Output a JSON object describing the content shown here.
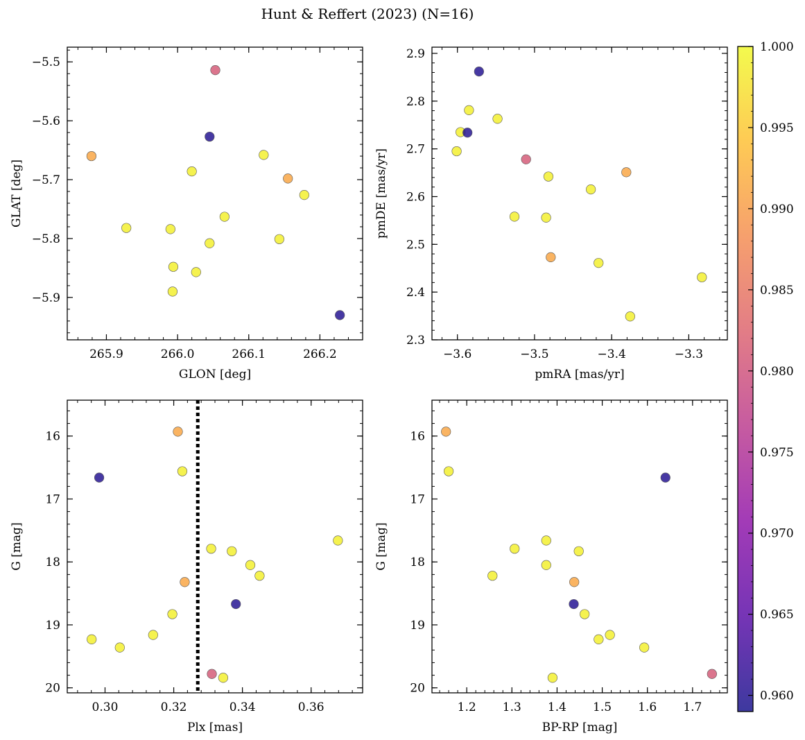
{
  "figure_title": "Hunt & Reffert (2023) (N=16)",
  "colorbar": {
    "min": 0.959,
    "max": 1.0,
    "ticks": [
      0.96,
      0.965,
      0.97,
      0.975,
      0.98,
      0.985,
      0.99,
      0.995,
      1.0
    ],
    "tick_labels": [
      "0.960",
      "0.965",
      "0.970",
      "0.975",
      "0.980",
      "0.985",
      "0.990",
      "0.995",
      "1.000"
    ],
    "colormap": [
      "#0d0887",
      "#5302a3",
      "#8b0aa5",
      "#b83289",
      "#db5c68",
      "#f48849",
      "#febd2a",
      "#f0f921"
    ]
  },
  "chart_data": [
    {
      "type": "scatter",
      "id": "glon-glat",
      "xlabel": "GLON [deg]",
      "ylabel": "GLAT [deg]",
      "xlim": [
        265.845,
        266.26
      ],
      "ylim": [
        -5.972,
        -5.475
      ],
      "y_inverted": false,
      "xticks": [
        265.9,
        266.0,
        266.1,
        266.2
      ],
      "xtick_labels": [
        "265.9",
        "266.0",
        "266.1",
        "266.2"
      ],
      "yticks": [
        -5.5,
        -5.6,
        -5.7,
        -5.8,
        -5.9
      ],
      "ytick_labels": [
        "−5.5",
        "−5.6",
        "−5.7",
        "−5.8",
        "−5.9"
      ],
      "points": [
        {
          "x": 266.053,
          "y": -5.514,
          "c": 0.981
        },
        {
          "x": 266.045,
          "y": -5.627,
          "c": 0.96
        },
        {
          "x": 265.879,
          "y": -5.66,
          "c": 0.991
        },
        {
          "x": 266.121,
          "y": -5.658,
          "c": 0.999
        },
        {
          "x": 266.02,
          "y": -5.686,
          "c": 0.999
        },
        {
          "x": 266.155,
          "y": -5.698,
          "c": 0.991
        },
        {
          "x": 266.178,
          "y": -5.726,
          "c": 0.999
        },
        {
          "x": 266.066,
          "y": -5.763,
          "c": 0.999
        },
        {
          "x": 265.928,
          "y": -5.782,
          "c": 0.999
        },
        {
          "x": 265.99,
          "y": -5.784,
          "c": 0.999
        },
        {
          "x": 266.143,
          "y": -5.801,
          "c": 0.999
        },
        {
          "x": 266.045,
          "y": -5.808,
          "c": 0.999
        },
        {
          "x": 265.994,
          "y": -5.848,
          "c": 0.999
        },
        {
          "x": 266.026,
          "y": -5.857,
          "c": 0.999
        },
        {
          "x": 265.993,
          "y": -5.89,
          "c": 0.999
        },
        {
          "x": 266.228,
          "y": -5.93,
          "c": 0.96
        }
      ]
    },
    {
      "type": "scatter",
      "id": "pmra-pmde",
      "xlabel": "pmRA [mas/yr]",
      "ylabel": "pmDE [mas/yr]",
      "xlim": [
        -3.633,
        -3.25
      ],
      "ylim": [
        2.3,
        2.913
      ],
      "y_inverted": false,
      "xticks": [
        -3.6,
        -3.5,
        -3.4,
        -3.3
      ],
      "xtick_labels": [
        "−3.6",
        "−3.5",
        "−3.4",
        "−3.3"
      ],
      "yticks": [
        2.3,
        2.4,
        2.5,
        2.6,
        2.7,
        2.8,
        2.9
      ],
      "ytick_labels": [
        "2.3",
        "2.4",
        "2.5",
        "2.6",
        "2.7",
        "2.8",
        "2.9"
      ],
      "points": [
        {
          "x": -3.572,
          "y": 2.862,
          "c": 0.96
        },
        {
          "x": -3.585,
          "y": 2.781,
          "c": 0.999
        },
        {
          "x": -3.548,
          "y": 2.763,
          "c": 0.999
        },
        {
          "x": -3.596,
          "y": 2.735,
          "c": 0.999
        },
        {
          "x": -3.587,
          "y": 2.734,
          "c": 0.96
        },
        {
          "x": -3.601,
          "y": 2.695,
          "c": 0.999
        },
        {
          "x": -3.511,
          "y": 2.678,
          "c": 0.981
        },
        {
          "x": -3.381,
          "y": 2.651,
          "c": 0.991
        },
        {
          "x": -3.482,
          "y": 2.642,
          "c": 0.999
        },
        {
          "x": -3.427,
          "y": 2.615,
          "c": 0.999
        },
        {
          "x": -3.526,
          "y": 2.558,
          "c": 0.999
        },
        {
          "x": -3.485,
          "y": 2.556,
          "c": 0.999
        },
        {
          "x": -3.479,
          "y": 2.473,
          "c": 0.991
        },
        {
          "x": -3.417,
          "y": 2.461,
          "c": 0.999
        },
        {
          "x": -3.283,
          "y": 2.431,
          "c": 0.999
        },
        {
          "x": -3.376,
          "y": 2.349,
          "c": 0.999
        }
      ]
    },
    {
      "type": "scatter",
      "id": "plx-g",
      "xlabel": "Plx [mas]",
      "ylabel": "G [mag]",
      "xlim": [
        0.289,
        0.375
      ],
      "ylim": [
        15.43,
        20.08
      ],
      "y_inverted": true,
      "xticks": [
        0.3,
        0.32,
        0.34,
        0.36
      ],
      "xtick_labels": [
        "0.30",
        "0.32",
        "0.34",
        "0.36"
      ],
      "yticks": [
        16,
        17,
        18,
        19,
        20
      ],
      "ytick_labels": [
        "16",
        "17",
        "18",
        "19",
        "20"
      ],
      "vline_x": 0.327,
      "points": [
        {
          "x": 0.3212,
          "y": 15.93,
          "c": 0.991
        },
        {
          "x": 0.3225,
          "y": 16.56,
          "c": 0.999
        },
        {
          "x": 0.2983,
          "y": 16.66,
          "c": 0.96
        },
        {
          "x": 0.3678,
          "y": 17.66,
          "c": 0.999
        },
        {
          "x": 0.3309,
          "y": 17.79,
          "c": 0.999
        },
        {
          "x": 0.3369,
          "y": 17.83,
          "c": 0.999
        },
        {
          "x": 0.3423,
          "y": 18.05,
          "c": 0.999
        },
        {
          "x": 0.345,
          "y": 18.22,
          "c": 0.999
        },
        {
          "x": 0.3232,
          "y": 18.32,
          "c": 0.991
        },
        {
          "x": 0.3381,
          "y": 18.67,
          "c": 0.96
        },
        {
          "x": 0.3196,
          "y": 18.83,
          "c": 0.999
        },
        {
          "x": 0.314,
          "y": 19.16,
          "c": 0.999
        },
        {
          "x": 0.2961,
          "y": 19.23,
          "c": 0.999
        },
        {
          "x": 0.3043,
          "y": 19.36,
          "c": 0.999
        },
        {
          "x": 0.3311,
          "y": 19.78,
          "c": 0.981
        },
        {
          "x": 0.3344,
          "y": 19.84,
          "c": 0.999
        }
      ]
    },
    {
      "type": "scatter",
      "id": "bprp-g",
      "xlabel": "BP-RP [mag]",
      "ylabel": "G [mag]",
      "xlim": [
        1.123,
        1.777
      ],
      "ylim": [
        15.43,
        20.08
      ],
      "y_inverted": true,
      "xticks": [
        1.2,
        1.3,
        1.4,
        1.5,
        1.6,
        1.7
      ],
      "xtick_labels": [
        "1.2",
        "1.3",
        "1.4",
        "1.5",
        "1.6",
        "1.7"
      ],
      "yticks": [
        16,
        17,
        18,
        19,
        20
      ],
      "ytick_labels": [
        "16",
        "17",
        "18",
        "19",
        "20"
      ],
      "points": [
        {
          "x": 1.154,
          "y": 15.93,
          "c": 0.991
        },
        {
          "x": 1.16,
          "y": 16.56,
          "c": 0.999
        },
        {
          "x": 1.64,
          "y": 16.66,
          "c": 0.96
        },
        {
          "x": 1.376,
          "y": 17.66,
          "c": 0.999
        },
        {
          "x": 1.306,
          "y": 17.79,
          "c": 0.999
        },
        {
          "x": 1.448,
          "y": 17.83,
          "c": 0.999
        },
        {
          "x": 1.376,
          "y": 18.05,
          "c": 0.999
        },
        {
          "x": 1.257,
          "y": 18.22,
          "c": 0.999
        },
        {
          "x": 1.438,
          "y": 18.32,
          "c": 0.991
        },
        {
          "x": 1.437,
          "y": 18.67,
          "c": 0.96
        },
        {
          "x": 1.461,
          "y": 18.83,
          "c": 0.999
        },
        {
          "x": 1.517,
          "y": 19.16,
          "c": 0.999
        },
        {
          "x": 1.492,
          "y": 19.23,
          "c": 0.999
        },
        {
          "x": 1.593,
          "y": 19.36,
          "c": 0.999
        },
        {
          "x": 1.743,
          "y": 19.78,
          "c": 0.981
        },
        {
          "x": 1.39,
          "y": 19.84,
          "c": 0.999
        }
      ]
    }
  ]
}
